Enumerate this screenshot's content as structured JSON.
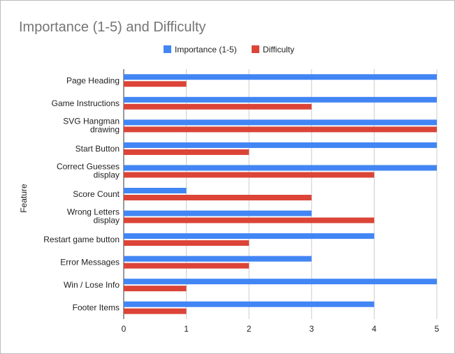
{
  "chart_data": {
    "type": "bar",
    "orientation": "horizontal",
    "title": "Importance (1-5) and Difficulty",
    "xlabel": "",
    "ylabel": "Feature",
    "xlim": [
      0,
      5
    ],
    "xticks": [
      "0",
      "1",
      "2",
      "3",
      "4",
      "5"
    ],
    "grid": true,
    "legend_position": "top",
    "categories": [
      [
        "Page Heading"
      ],
      [
        "Game Instructions"
      ],
      [
        "SVG Hangman",
        "drawing"
      ],
      [
        "Start Button"
      ],
      [
        "Correct Guesses",
        "display"
      ],
      [
        "Score Count"
      ],
      [
        "Wrong Letters",
        "display"
      ],
      [
        "Restart game button"
      ],
      [
        "Error Messages"
      ],
      [
        "Win / Lose Info"
      ],
      [
        "Footer Items"
      ]
    ],
    "series": [
      {
        "name": "Importance (1-5)",
        "color": "#4285f4",
        "values": [
          5,
          5,
          5,
          5,
          5,
          1,
          3,
          4,
          3,
          5,
          4
        ]
      },
      {
        "name": "Difficulty",
        "color": "#db4437",
        "values": [
          1,
          3,
          5,
          2,
          4,
          3,
          4,
          2,
          2,
          1,
          1
        ]
      }
    ]
  }
}
